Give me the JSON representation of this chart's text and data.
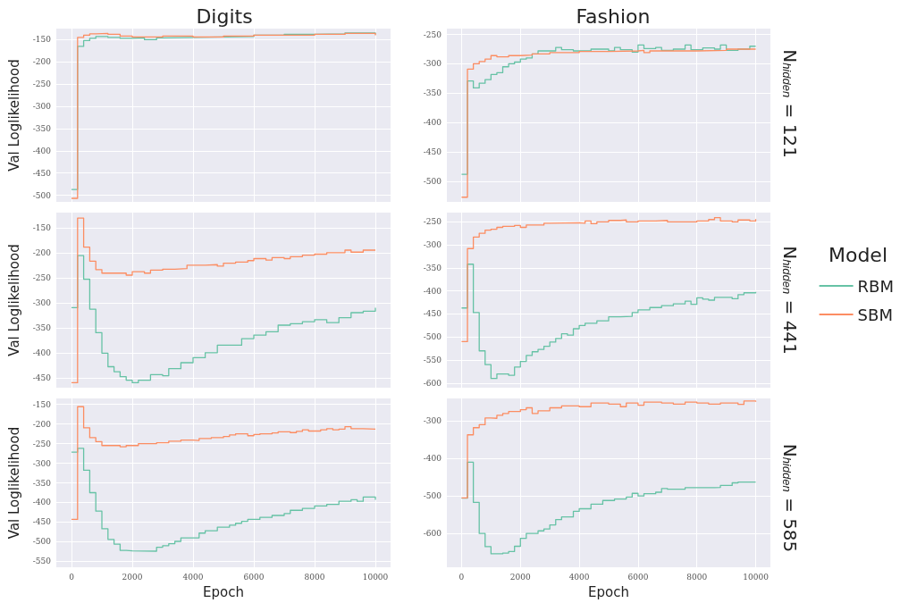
{
  "chart_data": [
    {
      "type": "step",
      "title": "Digits",
      "ylabel": "Val Loglikelihood",
      "xlim": [
        -500,
        10500
      ],
      "xticks": [
        0,
        2000,
        4000,
        6000,
        8000,
        10000
      ],
      "ylim": [
        -515,
        -125
      ],
      "yticks": [
        -500,
        -450,
        -400,
        -350,
        -300,
        -250,
        -200,
        -150
      ],
      "grid": true,
      "tick_labels": "y",
      "series": [
        {
          "color": "#66c2a5",
          "x": [
            0,
            200,
            400,
            600,
            800,
            1200,
            1600,
            2000,
            2400,
            2800,
            3000,
            4000,
            5000,
            6000,
            7000,
            8000,
            9000,
            10000
          ],
          "values": [
            -487,
            -165,
            -152,
            -147,
            -143,
            -145,
            -147,
            -146,
            -150,
            -146,
            -145,
            -144,
            -143,
            -140,
            -138,
            -137,
            -135,
            -138
          ]
        },
        {
          "color": "#fc8d62",
          "x": [
            0,
            200,
            400,
            600,
            800,
            1200,
            1600,
            2000,
            3000,
            4000,
            5000,
            6000,
            7000,
            8000,
            9000,
            10000
          ],
          "values": [
            -507,
            -145,
            -140,
            -137,
            -136,
            -138,
            -142,
            -144,
            -142,
            -144,
            -142,
            -140,
            -140,
            -138,
            -136,
            -140
          ]
        }
      ]
    },
    {
      "type": "step",
      "title": "Fashion",
      "y2label": "N$_{hidden}$ = 121",
      "xlim": [
        -500,
        10500
      ],
      "xticks": [
        0,
        2000,
        4000,
        6000,
        8000,
        10000
      ],
      "ylim": [
        -535,
        -240
      ],
      "yticks": [
        -500,
        -450,
        -400,
        -350,
        -300,
        -250
      ],
      "grid": true,
      "tick_labels": "y",
      "series": [
        {
          "color": "#66c2a5",
          "x": [
            0,
            200,
            400,
            600,
            800,
            1000,
            1200,
            1400,
            1600,
            1800,
            2000,
            2200,
            2400,
            2600,
            3000,
            3200,
            3400,
            3800,
            4200,
            4400,
            5000,
            5200,
            5400,
            5800,
            6000,
            6200,
            6600,
            6800,
            7200,
            7600,
            7800,
            8200,
            8600,
            8800,
            9000,
            9400,
            9800,
            10000
          ],
          "values": [
            -488,
            -329,
            -341,
            -333,
            -327,
            -318,
            -315,
            -305,
            -300,
            -297,
            -292,
            -290,
            -283,
            -278,
            -278,
            -272,
            -276,
            -278,
            -278,
            -275,
            -278,
            -272,
            -276,
            -280,
            -268,
            -274,
            -272,
            -277,
            -275,
            -268,
            -276,
            -273,
            -275,
            -268,
            -277,
            -275,
            -270,
            -270
          ]
        },
        {
          "color": "#fc8d62",
          "x": [
            0,
            200,
            400,
            600,
            800,
            1000,
            1200,
            1600,
            2000,
            2400,
            3000,
            4000,
            5000,
            6000,
            6200,
            6400,
            8000,
            9000,
            10000
          ],
          "values": [
            -527,
            -309,
            -300,
            -296,
            -292,
            -286,
            -288,
            -286,
            -285,
            -283,
            -281,
            -279,
            -278,
            -277,
            -281,
            -278,
            -277,
            -275,
            -274
          ]
        }
      ]
    },
    {
      "type": "step",
      "ylabel": "Val Loglikelihood",
      "xlim": [
        -500,
        10500
      ],
      "xticks": [
        0,
        2000,
        4000,
        6000,
        8000,
        10000
      ],
      "ylim": [
        -470,
        -120
      ],
      "yticks": [
        -450,
        -400,
        -350,
        -300,
        -250,
        -200,
        -150
      ],
      "grid": true,
      "tick_labels": "y",
      "series": [
        {
          "color": "#66c2a5",
          "x": [
            0,
            200,
            400,
            600,
            800,
            1000,
            1200,
            1400,
            1600,
            1800,
            2000,
            2200,
            2600,
            3000,
            3200,
            3600,
            4000,
            4400,
            4800,
            5200,
            5600,
            6000,
            6400,
            6800,
            7200,
            7600,
            8000,
            8400,
            8800,
            9200,
            9600,
            10000
          ],
          "values": [
            -310,
            -206,
            -253,
            -313,
            -360,
            -401,
            -428,
            -438,
            -448,
            -455,
            -460,
            -455,
            -444,
            -446,
            -432,
            -420,
            -410,
            -400,
            -385,
            -385,
            -372,
            -365,
            -358,
            -345,
            -342,
            -338,
            -334,
            -340,
            -330,
            -320,
            -317,
            -310
          ]
        },
        {
          "color": "#fc8d62",
          "x": [
            0,
            200,
            400,
            600,
            800,
            1000,
            1800,
            2000,
            2400,
            2600,
            3000,
            3400,
            3800,
            4400,
            4800,
            5000,
            5400,
            5800,
            6000,
            6400,
            6600,
            7000,
            7200,
            7600,
            8000,
            8400,
            8800,
            9000,
            9200,
            9600,
            10000
          ],
          "values": [
            -460,
            -131,
            -189,
            -217,
            -234,
            -241,
            -245,
            -238,
            -241,
            -235,
            -233,
            -232,
            -225,
            -224,
            -227,
            -221,
            -219,
            -216,
            -212,
            -215,
            -210,
            -212,
            -208,
            -205,
            -203,
            -200,
            -200,
            -195,
            -199,
            -195,
            -194
          ]
        }
      ]
    },
    {
      "type": "step",
      "y2label": "N$_{hidden}$ = 441",
      "legend": "right",
      "legend_title": "Model",
      "xlim": [
        -500,
        10500
      ],
      "xticks": [
        0,
        2000,
        4000,
        6000,
        8000,
        10000
      ],
      "ylim": [
        -610,
        -230
      ],
      "yticks": [
        -600,
        -550,
        -500,
        -450,
        -400,
        -350,
        -300,
        -250
      ],
      "grid": true,
      "tick_labels": "y",
      "series": [
        {
          "name": "RBM",
          "color": "#66c2a5",
          "x": [
            0,
            200,
            400,
            600,
            800,
            1000,
            1200,
            1600,
            1800,
            2000,
            2200,
            2400,
            2600,
            2800,
            3000,
            3200,
            3400,
            3600,
            3800,
            4000,
            4200,
            4600,
            5000,
            5400,
            5800,
            6000,
            6400,
            6800,
            7200,
            7600,
            7800,
            8000,
            8200,
            8400,
            8600,
            9200,
            9400,
            9600,
            10000
          ],
          "values": [
            -437,
            -342,
            -447,
            -530,
            -560,
            -590,
            -580,
            -583,
            -565,
            -553,
            -540,
            -532,
            -527,
            -520,
            -511,
            -503,
            -493,
            -496,
            -482,
            -475,
            -470,
            -465,
            -456,
            -455,
            -447,
            -441,
            -436,
            -432,
            -428,
            -422,
            -429,
            -415,
            -418,
            -420,
            -414,
            -417,
            -408,
            -404,
            -402
          ]
        },
        {
          "name": "SBM",
          "color": "#fc8d62",
          "x": [
            0,
            200,
            400,
            600,
            800,
            1000,
            1200,
            1400,
            1800,
            2000,
            2200,
            2800,
            3000,
            4000,
            4200,
            4400,
            4600,
            5000,
            5400,
            5600,
            6000,
            6600,
            7000,
            7400,
            8000,
            8400,
            8600,
            8800,
            9200,
            9400,
            9800,
            10000
          ],
          "values": [
            -510,
            -308,
            -283,
            -275,
            -268,
            -266,
            -262,
            -260,
            -258,
            -262,
            -257,
            -253,
            -252,
            -253,
            -248,
            -254,
            -250,
            -247,
            -246,
            -250,
            -248,
            -247,
            -250,
            -250,
            -248,
            -245,
            -241,
            -248,
            -250,
            -246,
            -248,
            -244
          ]
        }
      ]
    },
    {
      "type": "step",
      "xlabel": "Epoch",
      "ylabel": "Val Loglikelihood",
      "xlim": [
        -500,
        10500
      ],
      "xticks": [
        0,
        2000,
        4000,
        6000,
        8000,
        10000
      ],
      "ylim": [
        -565,
        -135
      ],
      "yticks": [
        -550,
        -500,
        -450,
        -400,
        -350,
        -300,
        -250,
        -200,
        -150
      ],
      "grid": true,
      "series": [
        {
          "color": "#66c2a5",
          "x": [
            0,
            200,
            400,
            600,
            800,
            1000,
            1200,
            1400,
            1600,
            1800,
            2000,
            2800,
            3000,
            3200,
            3400,
            3600,
            4200,
            4400,
            4800,
            5200,
            5400,
            5600,
            5800,
            6200,
            6600,
            7000,
            7200,
            7600,
            8000,
            8400,
            8800,
            9200,
            9400,
            9600,
            10000
          ],
          "values": [
            -272,
            -262,
            -318,
            -375,
            -422,
            -467,
            -494,
            -506,
            -522,
            -523,
            -524,
            -514,
            -510,
            -505,
            -499,
            -490,
            -478,
            -472,
            -463,
            -458,
            -453,
            -448,
            -443,
            -438,
            -433,
            -428,
            -420,
            -415,
            -409,
            -405,
            -397,
            -393,
            -397,
            -386,
            -393
          ]
        },
        {
          "color": "#fc8d62",
          "x": [
            0,
            200,
            400,
            600,
            800,
            1000,
            1600,
            1800,
            2200,
            2800,
            3200,
            3600,
            4000,
            4200,
            4600,
            5000,
            5200,
            5400,
            5800,
            6000,
            6200,
            6600,
            6800,
            7200,
            7400,
            7600,
            7800,
            8200,
            8400,
            8600,
            8800,
            9000,
            9200,
            9600,
            10000
          ],
          "values": [
            -443,
            -156,
            -210,
            -235,
            -245,
            -255,
            -258,
            -255,
            -250,
            -248,
            -244,
            -241,
            -242,
            -237,
            -235,
            -232,
            -228,
            -225,
            -230,
            -227,
            -225,
            -223,
            -220,
            -222,
            -219,
            -215,
            -218,
            -215,
            -212,
            -215,
            -213,
            -207,
            -212,
            -213,
            -212
          ]
        }
      ]
    },
    {
      "type": "step",
      "xlabel": "Epoch",
      "y2label": "N$_{hidden}$ = 585",
      "xlim": [
        -500,
        10500
      ],
      "xticks": [
        0,
        2000,
        4000,
        6000,
        8000,
        10000
      ],
      "ylim": [
        -690,
        -240
      ],
      "yticks": [
        -600,
        -500,
        -400,
        -300
      ],
      "grid": true,
      "series": [
        {
          "color": "#66c2a5",
          "x": [
            0,
            200,
            400,
            600,
            800,
            1000,
            1400,
            1600,
            1800,
            2000,
            2200,
            2600,
            2800,
            3000,
            3200,
            3400,
            3800,
            4000,
            4400,
            4800,
            5200,
            5600,
            5800,
            6000,
            6200,
            6600,
            6800,
            7000,
            7600,
            8000,
            8600,
            8800,
            9200,
            9400,
            10000
          ],
          "values": [
            -506,
            -410,
            -517,
            -600,
            -635,
            -654,
            -652,
            -648,
            -634,
            -613,
            -600,
            -593,
            -588,
            -577,
            -563,
            -556,
            -541,
            -534,
            -522,
            -512,
            -508,
            -503,
            -493,
            -500,
            -494,
            -490,
            -480,
            -482,
            -478,
            -478,
            -477,
            -472,
            -465,
            -463,
            -463
          ]
        },
        {
          "color": "#fc8d62",
          "x": [
            0,
            200,
            400,
            600,
            800,
            1000,
            1200,
            1400,
            1600,
            2000,
            2200,
            2400,
            2600,
            3000,
            3400,
            4000,
            4400,
            5000,
            5400,
            5600,
            6000,
            6200,
            6800,
            7200,
            7600,
            8000,
            8400,
            8800,
            9400,
            9600,
            10000
          ],
          "values": [
            -505,
            -337,
            -318,
            -310,
            -292,
            -293,
            -285,
            -280,
            -275,
            -270,
            -265,
            -280,
            -273,
            -265,
            -260,
            -262,
            -252,
            -255,
            -262,
            -252,
            -258,
            -250,
            -252,
            -255,
            -250,
            -252,
            -255,
            -252,
            -256,
            -247,
            -249
          ]
        }
      ]
    }
  ]
}
